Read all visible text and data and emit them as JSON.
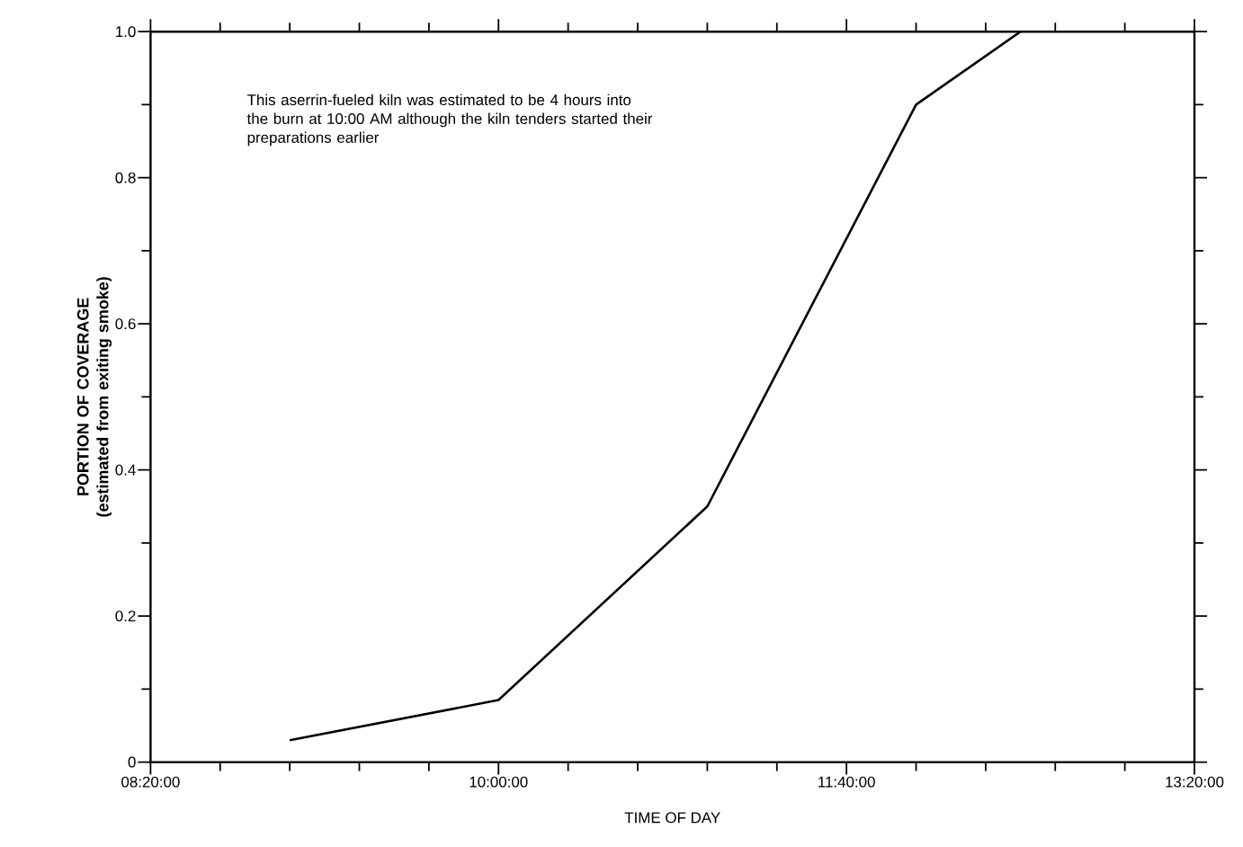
{
  "chart_data": {
    "type": "line",
    "xlabel": "TIME OF DAY",
    "ylabel": "PORTION OF COVERAGE (estimated from exiting smoke)",
    "annotations": [
      "This aserrin-fueled kiln was estimated to be 4 hours into the burn at 10:00 AM although the kiln tenders started their preparations earlier"
    ],
    "x": [
      9.0,
      10.0,
      11.0,
      12.0,
      12.5
    ],
    "series": [
      {
        "color": "#000000",
        "values": [
          0.03,
          0.085,
          0.35,
          0.9,
          1.0
        ]
      }
    ],
    "xlim": [
      8.333333,
      13.333333
    ],
    "xticks": [
      {
        "value": 8.333333,
        "label": "08:20:00"
      },
      {
        "value": 10,
        "label": "10:00:00"
      },
      {
        "value": 11.666667,
        "label": "11:40:00"
      },
      {
        "value": 13.333333,
        "label": "13:20:00"
      }
    ],
    "ylim": [
      0,
      1
    ],
    "yticks": [
      {
        "value": 0,
        "label": "0"
      },
      {
        "value": 0.2,
        "label": "0.2"
      },
      {
        "value": 0.4,
        "label": "0.4"
      },
      {
        "value": 0.6,
        "label": "0.6"
      },
      {
        "value": 0.8,
        "label": "0.8"
      },
      {
        "value": 1.0,
        "label": "1.0"
      }
    ],
    "marker": "none",
    "line_style": "solid"
  }
}
